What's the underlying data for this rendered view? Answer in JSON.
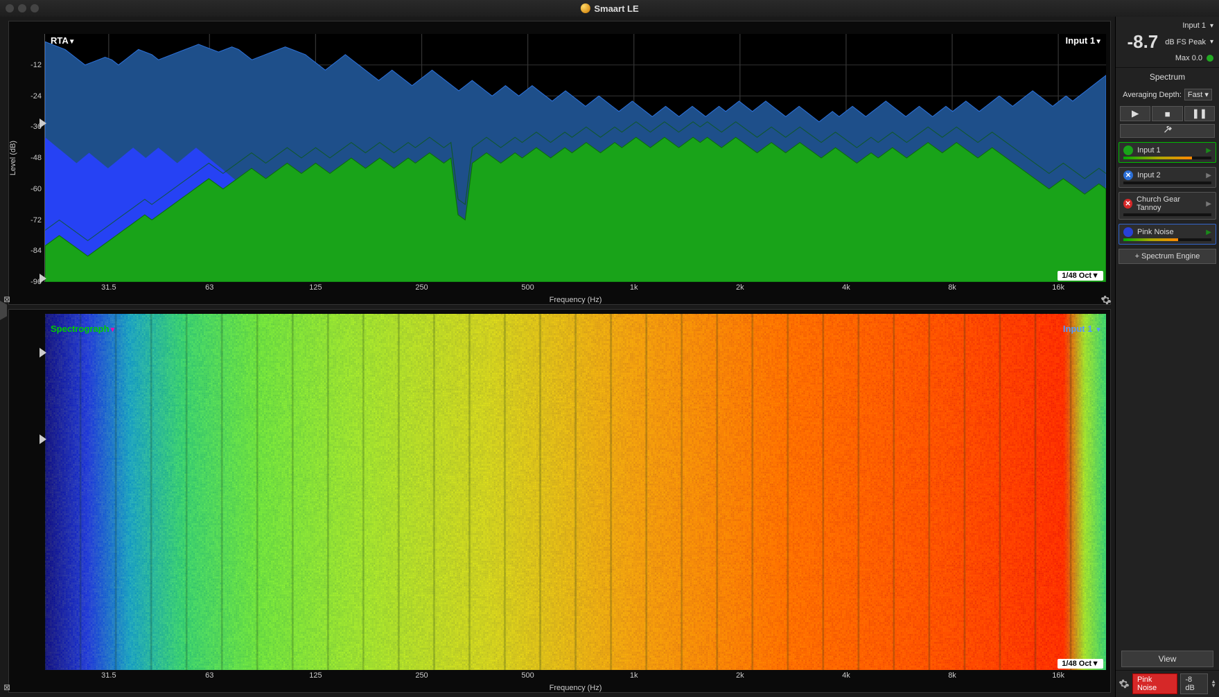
{
  "app": {
    "title": "Smaart LE"
  },
  "header": {
    "input_selector": "Input 1",
    "db_value": "-8.7",
    "db_units": "dB FS Peak",
    "max_label": "Max 0.0"
  },
  "sidebar": {
    "section_title": "Spectrum",
    "avg_label": "Averaging Depth:",
    "avg_value": "Fast",
    "transport": {
      "play": "▶",
      "stop": "■",
      "pause": "❚❚"
    },
    "tools_icon": "✕",
    "inputs": [
      {
        "name": "Input 1",
        "color": "#19a319",
        "active": true,
        "meter": 0.78,
        "play_tint": "#1a8a1a"
      },
      {
        "name": "Input 2",
        "color": "#2b6fd6",
        "active": false,
        "meter": 0.0,
        "icon": "x",
        "play_tint": "#777"
      },
      {
        "name": "Church Gear Tannoy",
        "color": "#d62828",
        "active": false,
        "meter": 0.0,
        "icon": "x",
        "play_tint": "#777"
      },
      {
        "name": "Pink Noise",
        "color": "#2740d6",
        "active": false,
        "meter": 0.62,
        "play_tint": "#1a8a1a",
        "blue_border": true
      }
    ],
    "add_engine": "+ Spectrum Engine",
    "view_btn": "View",
    "footer": {
      "pink_noise": "Pink Noise",
      "db": "-8 dB"
    }
  },
  "rta": {
    "title": "RTA",
    "source": "Input 1",
    "y_label": "Level (dB)",
    "y_ticks": [
      -12,
      -24,
      -36,
      -48,
      -60,
      -72,
      -84,
      -96
    ],
    "ylim": [
      -96,
      0
    ],
    "x_label": "Frequency (Hz)",
    "x_ticks": [
      "31.5",
      "63",
      "125",
      "250",
      "500",
      "1k",
      "2k",
      "4k",
      "8k",
      "16k"
    ],
    "x_positions": [
      0.06,
      0.155,
      0.255,
      0.355,
      0.455,
      0.555,
      0.655,
      0.755,
      0.855,
      0.955
    ],
    "oct_label": "1/48 Oct",
    "colors": {
      "bg": "#000000",
      "grid": "#2a2a2a",
      "peak_fill": "#1e4f8a",
      "peak_stroke": "#2b6fd6",
      "avg_fill": "#19a319",
      "avg_stroke": "#0d6e0d",
      "blue2": "#2740ff"
    },
    "markers": [
      0.34
    ],
    "peak_series": [
      -3,
      -4,
      -5,
      -6,
      -8,
      -10,
      -12,
      -11,
      -10,
      -9,
      -10,
      -12,
      -10,
      -8,
      -6,
      -7,
      -8,
      -10,
      -9,
      -8,
      -7,
      -6,
      -5,
      -4,
      -5,
      -6,
      -7,
      -6,
      -5,
      -6,
      -8,
      -10,
      -9,
      -8,
      -7,
      -6,
      -5,
      -6,
      -7,
      -8,
      -10,
      -12,
      -14,
      -12,
      -10,
      -8,
      -10,
      -12,
      -14,
      -16,
      -18,
      -16,
      -14,
      -16,
      -18,
      -20,
      -18,
      -16,
      -14,
      -16,
      -18,
      -20,
      -22,
      -20,
      -18,
      -20,
      -22,
      -24,
      -22,
      -20,
      -22,
      -24,
      -22,
      -20,
      -22,
      -24,
      -26,
      -24,
      -22,
      -24,
      -26,
      -28,
      -26,
      -24,
      -26,
      -28,
      -30,
      -28,
      -26,
      -28,
      -30,
      -32,
      -30,
      -28,
      -30,
      -32,
      -30,
      -28,
      -30,
      -32,
      -30,
      -28,
      -30,
      -28,
      -26,
      -28,
      -30,
      -28,
      -26,
      -28,
      -30,
      -32,
      -30,
      -28,
      -30,
      -32,
      -34,
      -32,
      -30,
      -32,
      -30,
      -28,
      -30,
      -32,
      -30,
      -28,
      -26,
      -28,
      -30,
      -32,
      -30,
      -28,
      -30,
      -32,
      -30,
      -28,
      -30,
      -28,
      -26,
      -28,
      -30,
      -28,
      -26,
      -24,
      -26,
      -28,
      -26,
      -24,
      -22,
      -24,
      -26,
      -28,
      -26,
      -24,
      -26,
      -24,
      -22,
      -20,
      -18,
      -16
    ],
    "avg_series": [
      -82,
      -80,
      -78,
      -80,
      -82,
      -84,
      -86,
      -84,
      -82,
      -80,
      -78,
      -76,
      -74,
      -72,
      -70,
      -72,
      -70,
      -68,
      -66,
      -64,
      -62,
      -60,
      -58,
      -56,
      -58,
      -60,
      -58,
      -56,
      -54,
      -52,
      -54,
      -56,
      -54,
      -52,
      -50,
      -52,
      -54,
      -52,
      -50,
      -52,
      -54,
      -52,
      -50,
      -48,
      -50,
      -52,
      -50,
      -48,
      -50,
      -52,
      -50,
      -48,
      -50,
      -48,
      -46,
      -48,
      -50,
      -48,
      -70,
      -72,
      -50,
      -48,
      -46,
      -48,
      -50,
      -48,
      -46,
      -48,
      -46,
      -44,
      -46,
      -48,
      -46,
      -44,
      -46,
      -44,
      -42,
      -44,
      -46,
      -44,
      -42,
      -44,
      -42,
      -40,
      -42,
      -44,
      -42,
      -40,
      -42,
      -44,
      -42,
      -40,
      -42,
      -40,
      -42,
      -44,
      -42,
      -40,
      -42,
      -44,
      -46,
      -44,
      -42,
      -44,
      -46,
      -44,
      -42,
      -44,
      -46,
      -48,
      -46,
      -44,
      -46,
      -48,
      -50,
      -48,
      -46,
      -48,
      -46,
      -44,
      -46,
      -48,
      -46,
      -44,
      -42,
      -44,
      -46,
      -44,
      -42,
      -44,
      -46,
      -48,
      -46,
      -44,
      -46,
      -48,
      -50,
      -52,
      -54,
      -56,
      -58,
      -60,
      -58,
      -56,
      -58,
      -60,
      -62,
      -60,
      -58,
      -60
    ],
    "blue2_series": [
      -40,
      -42,
      -44,
      -46,
      -48,
      -50,
      -48,
      -46,
      -48,
      -50,
      -52,
      -50,
      -48,
      -46,
      -44,
      -46,
      -48,
      -46,
      -44,
      -46,
      -48,
      -50,
      -48,
      -46,
      -44,
      -46,
      -48,
      -50,
      -52,
      -54,
      -56,
      -58,
      -60,
      -62,
      -64,
      -66,
      -68,
      -70,
      -72,
      -74,
      -76,
      -78,
      -80,
      -82,
      -84,
      -86,
      -88,
      -90,
      -92,
      -94,
      -96,
      -96,
      -96,
      -96,
      -96,
      -96,
      -96,
      -96,
      -96,
      -96
    ]
  },
  "spectrograph": {
    "title": "Spectrograph",
    "source": "Input 1",
    "x_label": "Frequency (Hz)",
    "x_ticks": [
      "31.5",
      "63",
      "125",
      "250",
      "500",
      "1k",
      "2k",
      "4k",
      "8k",
      "16k"
    ],
    "x_positions": [
      0.06,
      0.155,
      0.255,
      0.355,
      0.455,
      0.555,
      0.655,
      0.755,
      0.855,
      0.955
    ],
    "oct_label": "1/48 Oct",
    "markers": [
      0.12,
      0.44
    ],
    "gradient_stops": [
      {
        "p": 0.0,
        "c": "#1a1a80"
      },
      {
        "p": 0.04,
        "c": "#2740d6"
      },
      {
        "p": 0.08,
        "c": "#1fa4c0"
      },
      {
        "p": 0.13,
        "c": "#3cd070"
      },
      {
        "p": 0.2,
        "c": "#6ee040"
      },
      {
        "p": 0.3,
        "c": "#a0e030"
      },
      {
        "p": 0.42,
        "c": "#d0d020"
      },
      {
        "p": 0.55,
        "c": "#f0a010"
      },
      {
        "p": 0.7,
        "c": "#ff7000"
      },
      {
        "p": 0.85,
        "c": "#ff5000"
      },
      {
        "p": 0.96,
        "c": "#ff3000"
      },
      {
        "p": 0.98,
        "c": "#a0e030"
      },
      {
        "p": 1.0,
        "c": "#3cd070"
      }
    ],
    "grid_color": "#1a3a1a"
  }
}
